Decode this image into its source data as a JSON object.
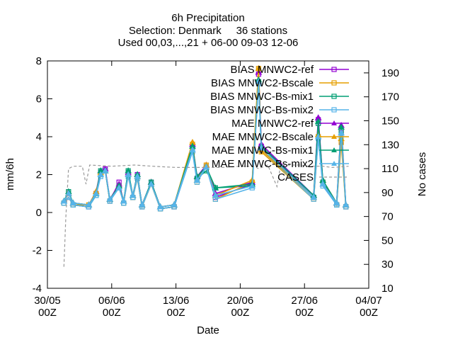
{
  "chart_data": {
    "type": "line",
    "title_lines": [
      "6h Precipitation",
      "Selection: Denmark     36 stations",
      "Used 00,03,...,21 + 06-00 09-03 12-06"
    ],
    "xlabel": "Date",
    "ylabel": "mm/6h",
    "y2label": "No cases",
    "x_ticks": [
      {
        "line1": "30/05",
        "line2": "00Z",
        "day": 0
      },
      {
        "line1": "06/06",
        "line2": "00Z",
        "day": 7
      },
      {
        "line1": "13/06",
        "line2": "00Z",
        "day": 14
      },
      {
        "line1": "20/06",
        "line2": "00Z",
        "day": 21
      },
      {
        "line1": "27/06",
        "line2": "00Z",
        "day": 28
      },
      {
        "line1": "04/07",
        "line2": "00Z",
        "day": 35
      }
    ],
    "xlim_days": [
      0,
      35
    ],
    "ylim": [
      -4,
      8
    ],
    "y_ticks": [
      -4,
      -2,
      0,
      2,
      4,
      6,
      8
    ],
    "y2lim": [
      10,
      200
    ],
    "y2_ticks": [
      10,
      30,
      50,
      70,
      90,
      110,
      130,
      150,
      170,
      190
    ],
    "legend_position": "top-right",
    "grid": false,
    "series": [
      {
        "name": "BIAS MNWC2-ref",
        "color": "#9400d3",
        "marker": "square",
        "stat": "bias",
        "axis": "y1",
        "points": [
          [
            1.8,
            0.5
          ],
          [
            2.3,
            0.8
          ],
          [
            2.8,
            0.4
          ],
          [
            4.5,
            0.3
          ],
          [
            5.3,
            1.0
          ],
          [
            5.8,
            2.1
          ],
          [
            6.3,
            2.3
          ],
          [
            6.8,
            0.6
          ],
          [
            7.8,
            1.6
          ],
          [
            8.3,
            0.5
          ],
          [
            8.8,
            2.1
          ],
          [
            9.3,
            0.8
          ],
          [
            9.8,
            2.0
          ],
          [
            10.3,
            0.3
          ],
          [
            11.3,
            1.6
          ],
          [
            12.3,
            0.2
          ],
          [
            13.8,
            0.3
          ],
          [
            15.8,
            3.3
          ],
          [
            16.3,
            1.8
          ],
          [
            17.3,
            2.4
          ],
          [
            18.3,
            0.8
          ],
          [
            22.3,
            1.5
          ],
          [
            23.0,
            7.3
          ],
          [
            23.3,
            3.5
          ],
          [
            29.0,
            0.8
          ],
          [
            29.5,
            4.9
          ],
          [
            30.0,
            1.5
          ],
          [
            31.5,
            0.4
          ],
          [
            32.0,
            4.2
          ],
          [
            32.5,
            0.3
          ]
        ]
      },
      {
        "name": "BIAS MNWC2-Bscale",
        "color": "#e69f00",
        "marker": "square",
        "stat": "bias",
        "axis": "y1",
        "points": [
          [
            1.8,
            0.5
          ],
          [
            2.3,
            0.8
          ],
          [
            2.8,
            0.4
          ],
          [
            4.5,
            0.4
          ],
          [
            5.3,
            1.0
          ],
          [
            5.8,
            2.0
          ],
          [
            6.3,
            2.2
          ],
          [
            6.8,
            0.6
          ],
          [
            7.8,
            1.4
          ],
          [
            8.3,
            0.5
          ],
          [
            8.8,
            2.0
          ],
          [
            9.3,
            0.8
          ],
          [
            9.8,
            1.8
          ],
          [
            10.3,
            0.3
          ],
          [
            11.3,
            1.5
          ],
          [
            12.3,
            0.2
          ],
          [
            13.8,
            0.3
          ],
          [
            15.8,
            3.6
          ],
          [
            16.3,
            1.6
          ],
          [
            17.3,
            2.5
          ],
          [
            18.3,
            0.7
          ],
          [
            22.3,
            1.6
          ],
          [
            23.0,
            7.6
          ],
          [
            23.3,
            3.2
          ],
          [
            29.0,
            0.7
          ],
          [
            29.5,
            4.0
          ],
          [
            30.0,
            1.6
          ],
          [
            31.5,
            0.4
          ],
          [
            32.0,
            3.7
          ],
          [
            32.5,
            0.3
          ]
        ]
      },
      {
        "name": "BIAS MNWC-Bs-mix1",
        "color": "#009e73",
        "marker": "square",
        "stat": "bias",
        "axis": "y1",
        "points": [
          [
            1.8,
            0.5
          ],
          [
            2.3,
            1.1
          ],
          [
            2.8,
            0.4
          ],
          [
            4.5,
            0.3
          ],
          [
            5.3,
            0.9
          ],
          [
            5.8,
            2.2
          ],
          [
            6.3,
            2.2
          ],
          [
            6.8,
            0.6
          ],
          [
            7.8,
            1.4
          ],
          [
            8.3,
            0.5
          ],
          [
            8.8,
            2.2
          ],
          [
            9.3,
            0.8
          ],
          [
            9.8,
            1.9
          ],
          [
            10.3,
            0.3
          ],
          [
            11.3,
            1.6
          ],
          [
            12.3,
            0.2
          ],
          [
            13.8,
            0.3
          ],
          [
            15.8,
            3.4
          ],
          [
            16.3,
            1.8
          ],
          [
            17.3,
            2.2
          ],
          [
            18.3,
            1.3
          ],
          [
            22.3,
            1.4
          ],
          [
            23.0,
            6.9
          ],
          [
            23.3,
            3.4
          ],
          [
            29.0,
            0.8
          ],
          [
            29.5,
            4.7
          ],
          [
            30.0,
            1.6
          ],
          [
            31.5,
            0.4
          ],
          [
            32.0,
            4.3
          ],
          [
            32.5,
            0.3
          ]
        ]
      },
      {
        "name": "BIAS MNWC-Bs-mix2",
        "color": "#56b4e9",
        "marker": "square",
        "stat": "bias",
        "axis": "y1",
        "points": [
          [
            1.8,
            0.5
          ],
          [
            2.3,
            0.8
          ],
          [
            2.8,
            0.4
          ],
          [
            4.5,
            0.3
          ],
          [
            5.3,
            0.9
          ],
          [
            5.8,
            1.9
          ],
          [
            6.3,
            2.2
          ],
          [
            6.8,
            0.6
          ],
          [
            7.8,
            1.3
          ],
          [
            8.3,
            0.5
          ],
          [
            8.8,
            1.9
          ],
          [
            9.3,
            0.8
          ],
          [
            9.8,
            1.8
          ],
          [
            10.3,
            0.3
          ],
          [
            11.3,
            1.5
          ],
          [
            12.3,
            0.2
          ],
          [
            13.8,
            0.3
          ],
          [
            15.8,
            3.2
          ],
          [
            16.3,
            1.6
          ],
          [
            17.3,
            2.4
          ],
          [
            18.3,
            0.7
          ],
          [
            22.3,
            1.3
          ],
          [
            23.0,
            6.8
          ],
          [
            23.3,
            3.3
          ],
          [
            29.0,
            0.7
          ],
          [
            29.5,
            3.9
          ],
          [
            30.0,
            1.4
          ],
          [
            31.5,
            0.4
          ],
          [
            32.0,
            4.0
          ],
          [
            32.5,
            0.3
          ]
        ]
      },
      {
        "name": "MAE MNWC2-ref",
        "color": "#9400d3",
        "marker": "triangle",
        "stat": "mae",
        "axis": "y1",
        "points": [
          [
            1.8,
            0.6
          ],
          [
            2.3,
            1.0
          ],
          [
            2.8,
            0.5
          ],
          [
            4.5,
            0.4
          ],
          [
            5.3,
            1.1
          ],
          [
            5.8,
            2.2
          ],
          [
            6.3,
            2.3
          ],
          [
            6.8,
            0.7
          ],
          [
            7.8,
            1.5
          ],
          [
            8.3,
            0.6
          ],
          [
            8.8,
            2.1
          ],
          [
            9.3,
            0.9
          ],
          [
            9.8,
            2.0
          ],
          [
            10.3,
            0.4
          ],
          [
            11.3,
            1.6
          ],
          [
            12.3,
            0.3
          ],
          [
            13.8,
            0.4
          ],
          [
            15.8,
            3.6
          ],
          [
            16.3,
            1.9
          ],
          [
            17.3,
            2.5
          ],
          [
            18.3,
            1.0
          ],
          [
            22.3,
            1.6
          ],
          [
            23.0,
            7.4
          ],
          [
            23.3,
            3.6
          ],
          [
            29.0,
            0.9
          ],
          [
            29.5,
            5.0
          ],
          [
            30.0,
            1.7
          ],
          [
            31.5,
            0.5
          ],
          [
            32.0,
            4.6
          ],
          [
            32.5,
            0.4
          ]
        ]
      },
      {
        "name": "MAE MNWC2-Bscale",
        "color": "#e69f00",
        "marker": "triangle",
        "stat": "mae",
        "axis": "y1",
        "points": [
          [
            1.8,
            0.6
          ],
          [
            2.3,
            1.0
          ],
          [
            2.8,
            0.5
          ],
          [
            4.5,
            0.4
          ],
          [
            5.3,
            1.1
          ],
          [
            5.8,
            2.1
          ],
          [
            6.3,
            2.2
          ],
          [
            6.8,
            0.7
          ],
          [
            7.8,
            1.4
          ],
          [
            8.3,
            0.6
          ],
          [
            8.8,
            2.0
          ],
          [
            9.3,
            0.9
          ],
          [
            9.8,
            1.9
          ],
          [
            10.3,
            0.4
          ],
          [
            11.3,
            1.5
          ],
          [
            12.3,
            0.3
          ],
          [
            13.8,
            0.4
          ],
          [
            15.8,
            3.7
          ],
          [
            16.3,
            1.7
          ],
          [
            17.3,
            2.5
          ],
          [
            18.3,
            0.9
          ],
          [
            22.3,
            1.7
          ],
          [
            23.0,
            7.6
          ],
          [
            23.3,
            3.3
          ],
          [
            29.0,
            0.8
          ],
          [
            29.5,
            4.1
          ],
          [
            30.0,
            1.7
          ],
          [
            31.5,
            0.5
          ],
          [
            32.0,
            3.9
          ],
          [
            32.5,
            0.4
          ]
        ]
      },
      {
        "name": "MAE MNWC-Bs-mix1",
        "color": "#009e73",
        "marker": "triangle",
        "stat": "mae",
        "axis": "y1",
        "points": [
          [
            1.8,
            0.6
          ],
          [
            2.3,
            1.1
          ],
          [
            2.8,
            0.5
          ],
          [
            4.5,
            0.4
          ],
          [
            5.3,
            1.0
          ],
          [
            5.8,
            2.2
          ],
          [
            6.3,
            2.2
          ],
          [
            6.8,
            0.7
          ],
          [
            7.8,
            1.4
          ],
          [
            8.3,
            0.6
          ],
          [
            8.8,
            2.2
          ],
          [
            9.3,
            0.9
          ],
          [
            9.8,
            2.0
          ],
          [
            10.3,
            0.4
          ],
          [
            11.3,
            1.6
          ],
          [
            12.3,
            0.3
          ],
          [
            13.8,
            0.4
          ],
          [
            15.8,
            3.5
          ],
          [
            16.3,
            1.9
          ],
          [
            17.3,
            2.4
          ],
          [
            18.3,
            1.3
          ],
          [
            22.3,
            1.5
          ],
          [
            23.0,
            7.0
          ],
          [
            23.3,
            3.5
          ],
          [
            29.0,
            0.9
          ],
          [
            29.5,
            4.8
          ],
          [
            30.0,
            1.7
          ],
          [
            31.5,
            0.5
          ],
          [
            32.0,
            4.5
          ],
          [
            32.5,
            0.4
          ]
        ]
      },
      {
        "name": "MAE MNWC-Bs-mix2",
        "color": "#56b4e9",
        "marker": "triangle",
        "stat": "mae",
        "axis": "y1",
        "points": [
          [
            1.8,
            0.6
          ],
          [
            2.3,
            1.0
          ],
          [
            2.8,
            0.5
          ],
          [
            4.5,
            0.4
          ],
          [
            5.3,
            1.0
          ],
          [
            5.8,
            2.0
          ],
          [
            6.3,
            2.2
          ],
          [
            6.8,
            0.7
          ],
          [
            7.8,
            1.3
          ],
          [
            8.3,
            0.6
          ],
          [
            8.8,
            2.0
          ],
          [
            9.3,
            0.9
          ],
          [
            9.8,
            1.9
          ],
          [
            10.3,
            0.4
          ],
          [
            11.3,
            1.5
          ],
          [
            12.3,
            0.3
          ],
          [
            13.8,
            0.4
          ],
          [
            15.8,
            3.3
          ],
          [
            16.3,
            1.7
          ],
          [
            17.3,
            2.4
          ],
          [
            18.3,
            0.9
          ],
          [
            22.3,
            1.4
          ],
          [
            23.0,
            6.9
          ],
          [
            23.3,
            3.4
          ],
          [
            29.0,
            0.8
          ],
          [
            29.5,
            4.0
          ],
          [
            30.0,
            1.5
          ],
          [
            31.5,
            0.5
          ],
          [
            32.0,
            4.2
          ],
          [
            32.5,
            0.4
          ]
        ]
      },
      {
        "name": "CASES",
        "color": "#999999",
        "marker": "none",
        "dashed": true,
        "stat": "cases",
        "axis": "y2",
        "points": [
          [
            1.8,
            28
          ],
          [
            2.0,
            68
          ],
          [
            2.3,
            110
          ],
          [
            2.8,
            112
          ],
          [
            3.8,
            112
          ],
          [
            4.2,
            97
          ],
          [
            4.6,
            113
          ],
          [
            7.0,
            112
          ],
          [
            9.5,
            113
          ],
          [
            11.5,
            112
          ],
          [
            14.0,
            111
          ],
          [
            17.0,
            111
          ],
          [
            19.0,
            111
          ],
          [
            21.0,
            112
          ],
          [
            22.5,
            112
          ],
          [
            23.0,
            110
          ],
          [
            24.0,
            113
          ],
          [
            25.0,
            95
          ],
          [
            25.4,
            113
          ],
          [
            26.5,
            113
          ],
          [
            27.5,
            113
          ],
          [
            28.5,
            112
          ],
          [
            30.0,
            112
          ],
          [
            31.0,
            111
          ],
          [
            32.8,
            112
          ]
        ]
      }
    ]
  }
}
